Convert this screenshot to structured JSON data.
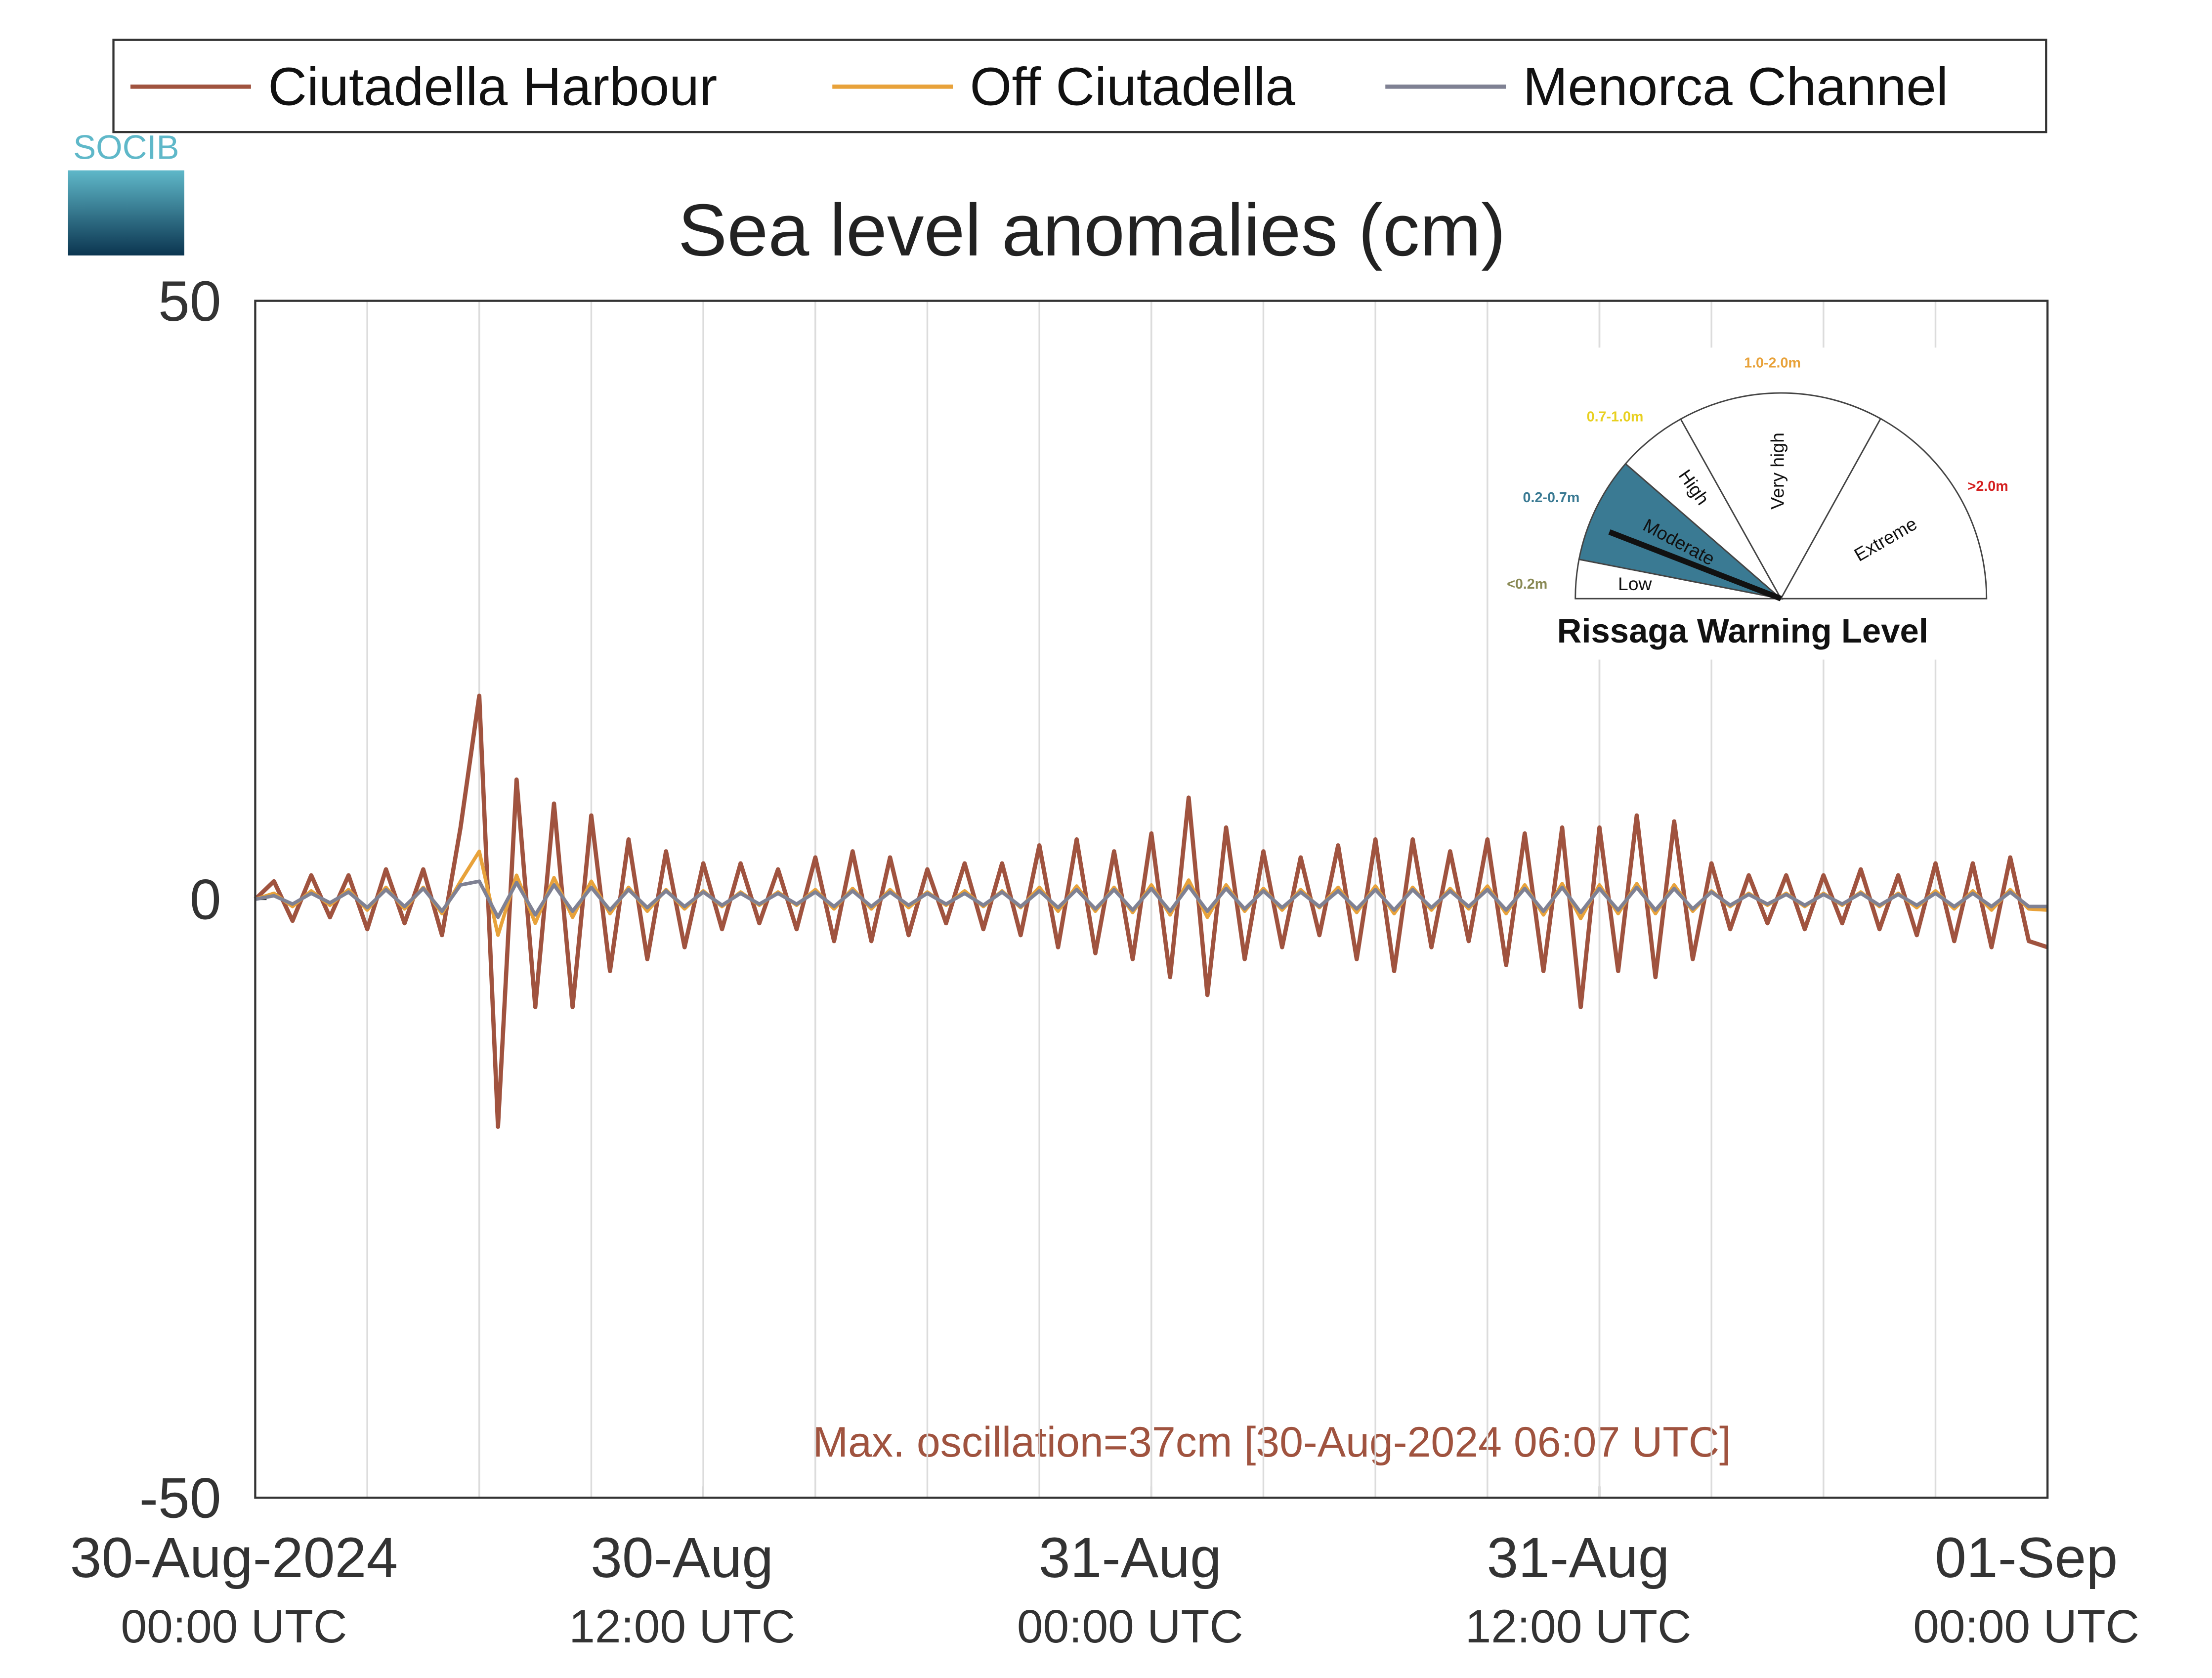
{
  "chart_data": {
    "type": "line",
    "title": "Sea level anomalies (cm)",
    "logo": "SOCIB",
    "annotation": "Max. oscillation=37cm [30-Aug-2024 06:07 UTC]",
    "xlim": [
      0,
      48
    ],
    "xgrid": [
      3,
      6,
      9,
      12,
      15,
      18,
      21,
      24,
      27,
      30,
      33,
      36,
      39,
      42,
      45
    ],
    "xticks": [
      {
        "value": 0,
        "label": [
          "30-Aug-2024",
          "00:00 UTC"
        ]
      },
      {
        "value": 12,
        "label": [
          "30-Aug",
          "12:00 UTC"
        ]
      },
      {
        "value": 24,
        "label": [
          "31-Aug",
          "00:00 UTC"
        ]
      },
      {
        "value": 36,
        "label": [
          "31-Aug",
          "12:00 UTC"
        ]
      },
      {
        "value": 48,
        "label": [
          "01-Sep",
          "00:00 UTC"
        ]
      }
    ],
    "ylim": [
      -50,
      50
    ],
    "yticks": [
      -50,
      0,
      50
    ],
    "grid": true,
    "x": [
      0,
      0.5,
      1,
      1.5,
      2,
      2.5,
      3,
      3.5,
      4,
      4.5,
      5,
      5.5,
      6,
      6.5,
      7,
      7.5,
      8,
      8.5,
      9,
      9.5,
      10,
      10.5,
      11,
      11.5,
      12,
      12.5,
      13,
      13.5,
      14,
      14.5,
      15,
      15.5,
      16,
      16.5,
      17,
      17.5,
      18,
      18.5,
      19,
      19.5,
      20,
      20.5,
      21,
      21.5,
      22,
      22.5,
      23,
      23.5,
      24,
      24.5,
      25,
      25.5,
      26,
      26.5,
      27,
      27.5,
      28,
      28.5,
      29,
      29.5,
      30,
      30.5,
      31,
      31.5,
      32,
      32.5,
      33,
      33.5,
      34,
      34.5,
      35,
      35.5,
      36,
      36.5,
      37,
      37.5,
      38,
      38.5,
      39,
      39.5,
      40,
      40.5,
      41,
      41.5,
      42,
      42.5,
      43,
      43.5,
      44,
      44.5,
      45,
      45.5,
      46,
      46.5,
      47,
      47.5,
      48
    ],
    "series": [
      {
        "name": "Ciutadella Harbour",
        "color": "#a0533f",
        "values": [
          0,
          1.5,
          -1.8,
          2,
          -1.5,
          2,
          -2.5,
          2.5,
          -2,
          2.5,
          -3,
          6,
          17,
          -19,
          10,
          -9,
          8,
          -9,
          7,
          -6,
          5,
          -5,
          4,
          -4,
          3,
          -2.5,
          3,
          -2,
          2.5,
          -2.5,
          3.5,
          -3.5,
          4,
          -3.5,
          3.5,
          -3,
          2.5,
          -2,
          3,
          -2.5,
          3,
          -3,
          4.5,
          -4,
          5,
          -4.5,
          4,
          -5,
          5.5,
          -6.5,
          8.5,
          -8,
          6,
          -5,
          4,
          -4,
          3.5,
          -3,
          4.5,
          -5,
          5,
          -6,
          5,
          -4,
          4,
          -3.5,
          5,
          -5.5,
          5.5,
          -6,
          6,
          -9,
          6,
          -6,
          7,
          -6.5,
          6.5,
          -5,
          3,
          -2.5,
          2,
          -2,
          2,
          -2.5,
          2,
          -2,
          2.5,
          -2.5,
          2,
          -3,
          3,
          -3.5,
          3,
          -4,
          3.5,
          -3.5,
          -4
        ]
      },
      {
        "name": "Off Ciutadella",
        "color": "#e8a23a",
        "values": [
          0,
          0.5,
          -0.6,
          0.7,
          -0.5,
          0.8,
          -0.9,
          1,
          -0.8,
          1,
          -1.2,
          1.5,
          4,
          -3,
          2,
          -2,
          1.8,
          -1.5,
          1.5,
          -1.2,
          1,
          -1,
          0.8,
          -0.8,
          0.7,
          -0.6,
          0.6,
          -0.5,
          0.6,
          -0.5,
          0.8,
          -0.8,
          0.9,
          -0.8,
          0.8,
          -0.7,
          0.6,
          -0.5,
          0.7,
          -0.6,
          0.7,
          -0.7,
          1,
          -1,
          1.1,
          -1,
          1,
          -1.1,
          1.2,
          -1.3,
          1.6,
          -1.5,
          1.2,
          -1,
          0.9,
          -0.9,
          0.8,
          -0.7,
          1,
          -1.1,
          1.1,
          -1.2,
          1,
          -0.9,
          0.9,
          -0.8,
          1.1,
          -1.2,
          1.2,
          -1.3,
          1.3,
          -1.6,
          1.2,
          -1.2,
          1.3,
          -1.2,
          1.2,
          -1,
          0.7,
          -0.6,
          0.5,
          -0.5,
          0.5,
          -0.6,
          0.5,
          -0.5,
          0.6,
          -0.6,
          0.5,
          -0.7,
          0.7,
          -0.8,
          0.7,
          -0.9,
          0.8,
          -0.8,
          -0.9
        ]
      },
      {
        "name": "Menorca Channel",
        "color": "#7f8193",
        "values": [
          0,
          0.3,
          -0.4,
          0.5,
          -0.3,
          0.6,
          -0.7,
          0.8,
          -0.6,
          0.9,
          -1,
          1.2,
          1.5,
          -1.5,
          1.4,
          -1.3,
          1.2,
          -1,
          1,
          -0.9,
          0.8,
          -0.7,
          0.7,
          -0.6,
          0.6,
          -0.5,
          0.5,
          -0.4,
          0.5,
          -0.4,
          0.6,
          -0.6,
          0.7,
          -0.6,
          0.6,
          -0.5,
          0.5,
          -0.4,
          0.5,
          -0.5,
          0.6,
          -0.6,
          0.7,
          -0.7,
          0.8,
          -0.8,
          0.8,
          -0.9,
          0.9,
          -1,
          1.1,
          -1,
          0.9,
          -0.8,
          0.7,
          -0.7,
          0.6,
          -0.6,
          0.7,
          -0.8,
          0.8,
          -0.9,
          0.8,
          -0.7,
          0.7,
          -0.6,
          0.8,
          -0.9,
          0.9,
          -1,
          1,
          -1.1,
          0.9,
          -0.9,
          1,
          -0.9,
          0.9,
          -0.8,
          0.6,
          -0.5,
          0.4,
          -0.4,
          0.4,
          -0.5,
          0.4,
          -0.4,
          0.5,
          -0.5,
          0.4,
          -0.5,
          0.5,
          -0.6,
          0.5,
          -0.6,
          0.6,
          -0.6,
          -0.6
        ]
      }
    ]
  },
  "warning_gauge": {
    "title": "Rissaga Warning Level",
    "levels": [
      {
        "name": "Low",
        "range": "<0.2m"
      },
      {
        "name": "Moderate",
        "range": "0.2-0.7m"
      },
      {
        "name": "High",
        "range": "0.7-1.0m"
      },
      {
        "name": "Very high",
        "range": "1.0-2.0m"
      },
      {
        "name": "Extreme",
        "range": ">2.0m"
      }
    ]
  }
}
